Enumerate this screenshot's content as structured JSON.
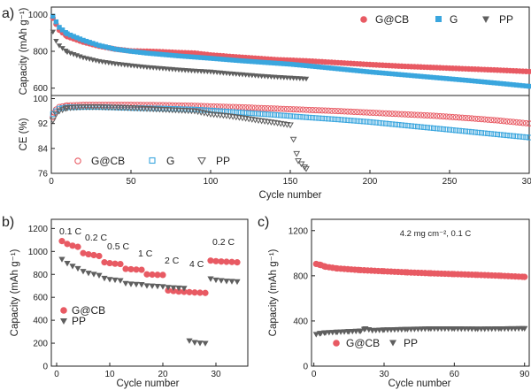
{
  "colors": {
    "gcb": "#e85a63",
    "g": "#3aa6de",
    "pp": "#5f5f5f"
  },
  "panel_labels": {
    "a": "a)",
    "b": "b)",
    "c": "c)"
  },
  "chart_data": [
    {
      "id": "a-top",
      "type": "scatter",
      "ylabel": "Capacity (mAh g⁻¹)",
      "xlim": [
        0,
        300
      ],
      "ylim": [
        560,
        1040
      ],
      "yticks": [
        600,
        800,
        1000
      ],
      "xticks": [],
      "legend": {
        "placement": "top-right"
      },
      "series": [
        {
          "name": "G@CB",
          "color": "#e85a63",
          "marker": "circle-filled",
          "x": [
            1,
            5,
            10,
            20,
            30,
            40,
            50,
            60,
            70,
            80,
            90,
            100,
            120,
            140,
            160,
            180,
            200,
            220,
            240,
            260,
            280,
            300
          ],
          "y": [
            980,
            915,
            880,
            850,
            828,
            812,
            802,
            800,
            797,
            793,
            790,
            780,
            767,
            755,
            748,
            738,
            728,
            719,
            712,
            705,
            698,
            690
          ]
        },
        {
          "name": "G",
          "color": "#3aa6de",
          "marker": "square-filled",
          "x": [
            1,
            5,
            10,
            20,
            30,
            40,
            50,
            60,
            80,
            100,
            120,
            150,
            160,
            180,
            200,
            220,
            240,
            260,
            280,
            300
          ],
          "y": [
            990,
            930,
            895,
            860,
            832,
            812,
            800,
            790,
            775,
            762,
            748,
            730,
            722,
            705,
            688,
            673,
            658,
            643,
            627,
            610
          ]
        },
        {
          "name": "PP",
          "color": "#5f5f5f",
          "marker": "triangle-down-filled",
          "x": [
            1,
            3,
            5,
            10,
            20,
            30,
            40,
            50,
            60,
            70,
            80,
            90,
            100,
            110,
            120,
            130,
            140,
            150,
            160
          ],
          "y": [
            905,
            855,
            830,
            795,
            765,
            745,
            732,
            722,
            713,
            706,
            699,
            693,
            688,
            680,
            673,
            666,
            660,
            655,
            650
          ]
        }
      ]
    },
    {
      "id": "a-bottom",
      "type": "scatter",
      "ylabel": "CE (%)",
      "xlabel": "Cycle number",
      "xlim": [
        0,
        300
      ],
      "ylim": [
        76,
        101
      ],
      "yticks": [
        76,
        84,
        92,
        100
      ],
      "xticks": [
        0,
        50,
        100,
        150,
        200,
        250,
        300
      ],
      "legend": {
        "placement": "bottom-left"
      },
      "series": [
        {
          "name": "G@CB",
          "color": "#e85a63",
          "marker": "circle-open",
          "x": [
            1,
            2,
            3,
            5,
            10,
            20,
            30,
            50,
            70,
            90,
            100,
            120,
            140,
            160,
            180,
            200,
            220,
            240,
            260,
            280,
            300
          ],
          "y": [
            94,
            95.5,
            96.5,
            97.3,
            97.8,
            98,
            98,
            98,
            97.9,
            97.7,
            97.5,
            97.2,
            96.8,
            96.4,
            96,
            95.5,
            95,
            94.5,
            93.8,
            93,
            92
          ]
        },
        {
          "name": "G",
          "color": "#3aa6de",
          "marker": "square-open",
          "x": [
            1,
            3,
            5,
            10,
            20,
            30,
            50,
            70,
            90,
            100,
            120,
            140,
            160,
            180,
            200,
            220,
            240,
            260,
            280,
            300
          ],
          "y": [
            95,
            96,
            96.8,
            97.2,
            97.3,
            97.3,
            97,
            96.8,
            96.5,
            96.2,
            95.5,
            94.8,
            94,
            93.3,
            92.5,
            91.5,
            90.5,
            89.5,
            88.5,
            87.5
          ]
        },
        {
          "name": "PP",
          "color": "#5f5f5f",
          "marker": "triangle-down-open",
          "x": [
            1,
            3,
            5,
            10,
            20,
            30,
            50,
            70,
            90,
            100,
            110,
            120,
            130,
            140,
            150,
            155,
            160
          ],
          "y": [
            93,
            95,
            96,
            97,
            97.3,
            97.3,
            97,
            96.5,
            96,
            95,
            94.5,
            93.8,
            93,
            92.3,
            91.5,
            80,
            77.5
          ]
        }
      ]
    },
    {
      "id": "b",
      "type": "scatter",
      "ylabel": "Capacity (mAh g⁻¹)",
      "xlabel": "Cycle number",
      "xlim": [
        -1,
        36
      ],
      "ylim": [
        0,
        1280
      ],
      "yticks": [
        0,
        200,
        400,
        600,
        800,
        1000,
        1200
      ],
      "xticks": [
        0,
        10,
        20,
        30
      ],
      "legend": {
        "placement": "bottom-left"
      },
      "annotations": [
        "0.1 C",
        "0.2 C",
        "0.5 C",
        "1 C",
        "2 C",
        "4 C",
        "0.2 C"
      ],
      "series": [
        {
          "name": "G@CB",
          "color": "#e85a63",
          "marker": "circle-filled",
          "x": [
            1,
            2,
            3,
            4,
            5,
            6,
            7,
            8,
            9,
            10,
            11,
            12,
            13,
            14,
            15,
            16,
            17,
            18,
            19,
            20,
            21,
            22,
            23,
            24,
            25,
            26,
            27,
            28,
            29,
            30,
            31,
            32,
            33,
            34
          ],
          "y": [
            1090,
            1065,
            1050,
            1040,
            985,
            975,
            968,
            960,
            905,
            898,
            893,
            890,
            848,
            845,
            842,
            840,
            800,
            798,
            796,
            795,
            660,
            655,
            650,
            648,
            645,
            642,
            640,
            638,
            920,
            915,
            912,
            910,
            908,
            905
          ]
        },
        {
          "name": "PP",
          "color": "#5f5f5f",
          "marker": "triangle-down-filled",
          "x": [
            1,
            2,
            3,
            4,
            5,
            6,
            7,
            8,
            9,
            10,
            11,
            12,
            13,
            14,
            15,
            16,
            17,
            18,
            19,
            20,
            21,
            22,
            23,
            24,
            25,
            26,
            27,
            28,
            29,
            30,
            31,
            32,
            33,
            34
          ],
          "y": [
            930,
            895,
            870,
            850,
            825,
            810,
            800,
            790,
            765,
            755,
            750,
            745,
            720,
            715,
            712,
            710,
            700,
            698,
            695,
            692,
            685,
            682,
            680,
            678,
            220,
            205,
            200,
            198,
            760,
            750,
            745,
            740,
            738,
            735
          ]
        }
      ]
    },
    {
      "id": "c",
      "type": "scatter",
      "ylabel": "Capacity (mAh g⁻¹)",
      "xlabel": "Cycle number",
      "xlim": [
        -1,
        92
      ],
      "ylim": [
        0,
        1300
      ],
      "yticks": [
        0,
        400,
        800,
        1200
      ],
      "xticks": [
        0,
        30,
        60,
        90
      ],
      "legend": {
        "placement": "bottom-left"
      },
      "annotation": "4.2 mg cm⁻², 0.1 C",
      "series": [
        {
          "name": "G@CB",
          "color": "#e85a63",
          "marker": "circle-filled",
          "x": [
            1,
            3,
            5,
            10,
            20,
            30,
            40,
            50,
            60,
            70,
            80,
            90
          ],
          "y": [
            905,
            895,
            880,
            865,
            850,
            840,
            830,
            822,
            815,
            808,
            800,
            790
          ]
        },
        {
          "name": "PP",
          "color": "#5f5f5f",
          "marker": "triangle-down-filled",
          "x": [
            1,
            3,
            5,
            10,
            15,
            20,
            22,
            25,
            30,
            40,
            50,
            60,
            70,
            80,
            90
          ],
          "y": [
            280,
            290,
            295,
            300,
            305,
            310,
            330,
            315,
            320,
            325,
            330,
            330,
            328,
            330,
            332
          ]
        }
      ]
    }
  ]
}
